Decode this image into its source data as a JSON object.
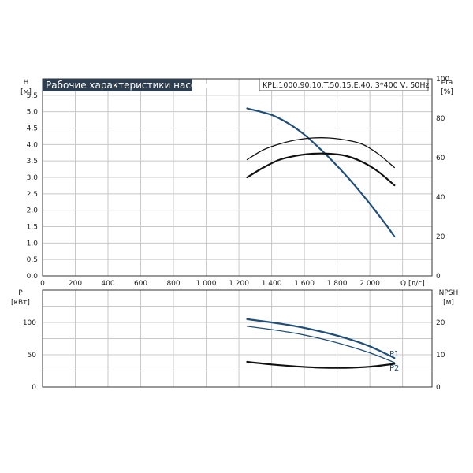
{
  "header": {
    "title": "Рабочие характеристики насоса",
    "model": "KPL.1000.90.10.T.50.15.E.40, 3*400 V, 50Hz",
    "title_bg": "#2c3e50"
  },
  "colors": {
    "blue": "#1f4e79",
    "black": "#111111",
    "grid": "#c8c8c8"
  },
  "chart_data": [
    {
      "type": "line",
      "panel": "top",
      "left_axis": {
        "label_line1": "H",
        "label_line2": "[м]",
        "range": [
          0,
          6
        ],
        "ticks": [
          "0.0",
          "0.5",
          "1.0",
          "1.5",
          "2.0",
          "2.5",
          "3.0",
          "3.5",
          "4.0",
          "4.5",
          "5.0",
          "5.5"
        ]
      },
      "right_axis": {
        "label_line1": "eta",
        "label_line2": "[%]",
        "range": [
          0,
          100
        ],
        "ticks": [
          "0",
          "20",
          "40",
          "60",
          "80",
          "100"
        ]
      },
      "x_axis": {
        "label": "Q [л/с]",
        "range": [
          0,
          2380
        ],
        "ticks": [
          "0",
          "200",
          "400",
          "600",
          "800",
          "1 000",
          "1 200",
          "1 400",
          "1 600",
          "1 800",
          "2 000"
        ],
        "tick_values": [
          0,
          200,
          400,
          600,
          800,
          1000,
          1200,
          1400,
          1600,
          1800,
          2000
        ]
      },
      "grid": true,
      "series": [
        {
          "axis": "left",
          "color": "blue",
          "width": 2.2,
          "x": [
            1250,
            1400,
            1500,
            1600,
            1700,
            1800,
            1900,
            2000,
            2100,
            2150
          ],
          "y": [
            5.1,
            4.9,
            4.65,
            4.3,
            3.85,
            3.35,
            2.8,
            2.2,
            1.55,
            1.2
          ]
        },
        {
          "axis": "right",
          "color": "black",
          "width": 2.2,
          "x": [
            1250,
            1350,
            1450,
            1550,
            1650,
            1750,
            1850,
            1950,
            2050,
            2150
          ],
          "y": [
            50,
            55,
            59,
            61,
            62,
            62,
            61,
            58,
            53,
            46
          ]
        },
        {
          "axis": "right",
          "color": "black",
          "width": 1.3,
          "x": [
            1250,
            1350,
            1450,
            1550,
            1650,
            1750,
            1850,
            1950,
            2050,
            2150
          ],
          "y": [
            59,
            64,
            67,
            69,
            70,
            70,
            69,
            67,
            62,
            55
          ]
        }
      ]
    },
    {
      "type": "line",
      "panel": "bottom",
      "left_axis": {
        "label_line1": "P",
        "label_line2": "[кВт]",
        "range": [
          0,
          150
        ],
        "ticks": [
          "0",
          "50",
          "100"
        ],
        "tick_values": [
          0,
          50,
          100
        ]
      },
      "right_axis": {
        "label_line1": "NPSH",
        "label_line2": "[м]",
        "range": [
          0,
          30
        ],
        "ticks": [
          "0",
          "10",
          "20"
        ],
        "tick_values": [
          0,
          10,
          20
        ]
      },
      "x_axis": {
        "range": [
          0,
          2380
        ]
      },
      "grid": true,
      "series": [
        {
          "name": "P1",
          "axis": "left",
          "color": "blue",
          "width": 2.2,
          "x": [
            1250,
            1400,
            1550,
            1700,
            1850,
            2000,
            2150
          ],
          "y": [
            105,
            100,
            94,
            86,
            76,
            63,
            45
          ]
        },
        {
          "name": "P2",
          "axis": "left",
          "color": "blue",
          "width": 1.3,
          "x": [
            1250,
            1400,
            1550,
            1700,
            1850,
            2000,
            2150
          ],
          "y": [
            94,
            89,
            83,
            75,
            65,
            53,
            38
          ]
        },
        {
          "axis": "right",
          "color": "black",
          "width": 2.2,
          "x": [
            1250,
            1400,
            1550,
            1700,
            1850,
            2000,
            2150
          ],
          "y": [
            7.8,
            7.0,
            6.4,
            6.0,
            5.95,
            6.3,
            7.2
          ]
        }
      ]
    }
  ]
}
